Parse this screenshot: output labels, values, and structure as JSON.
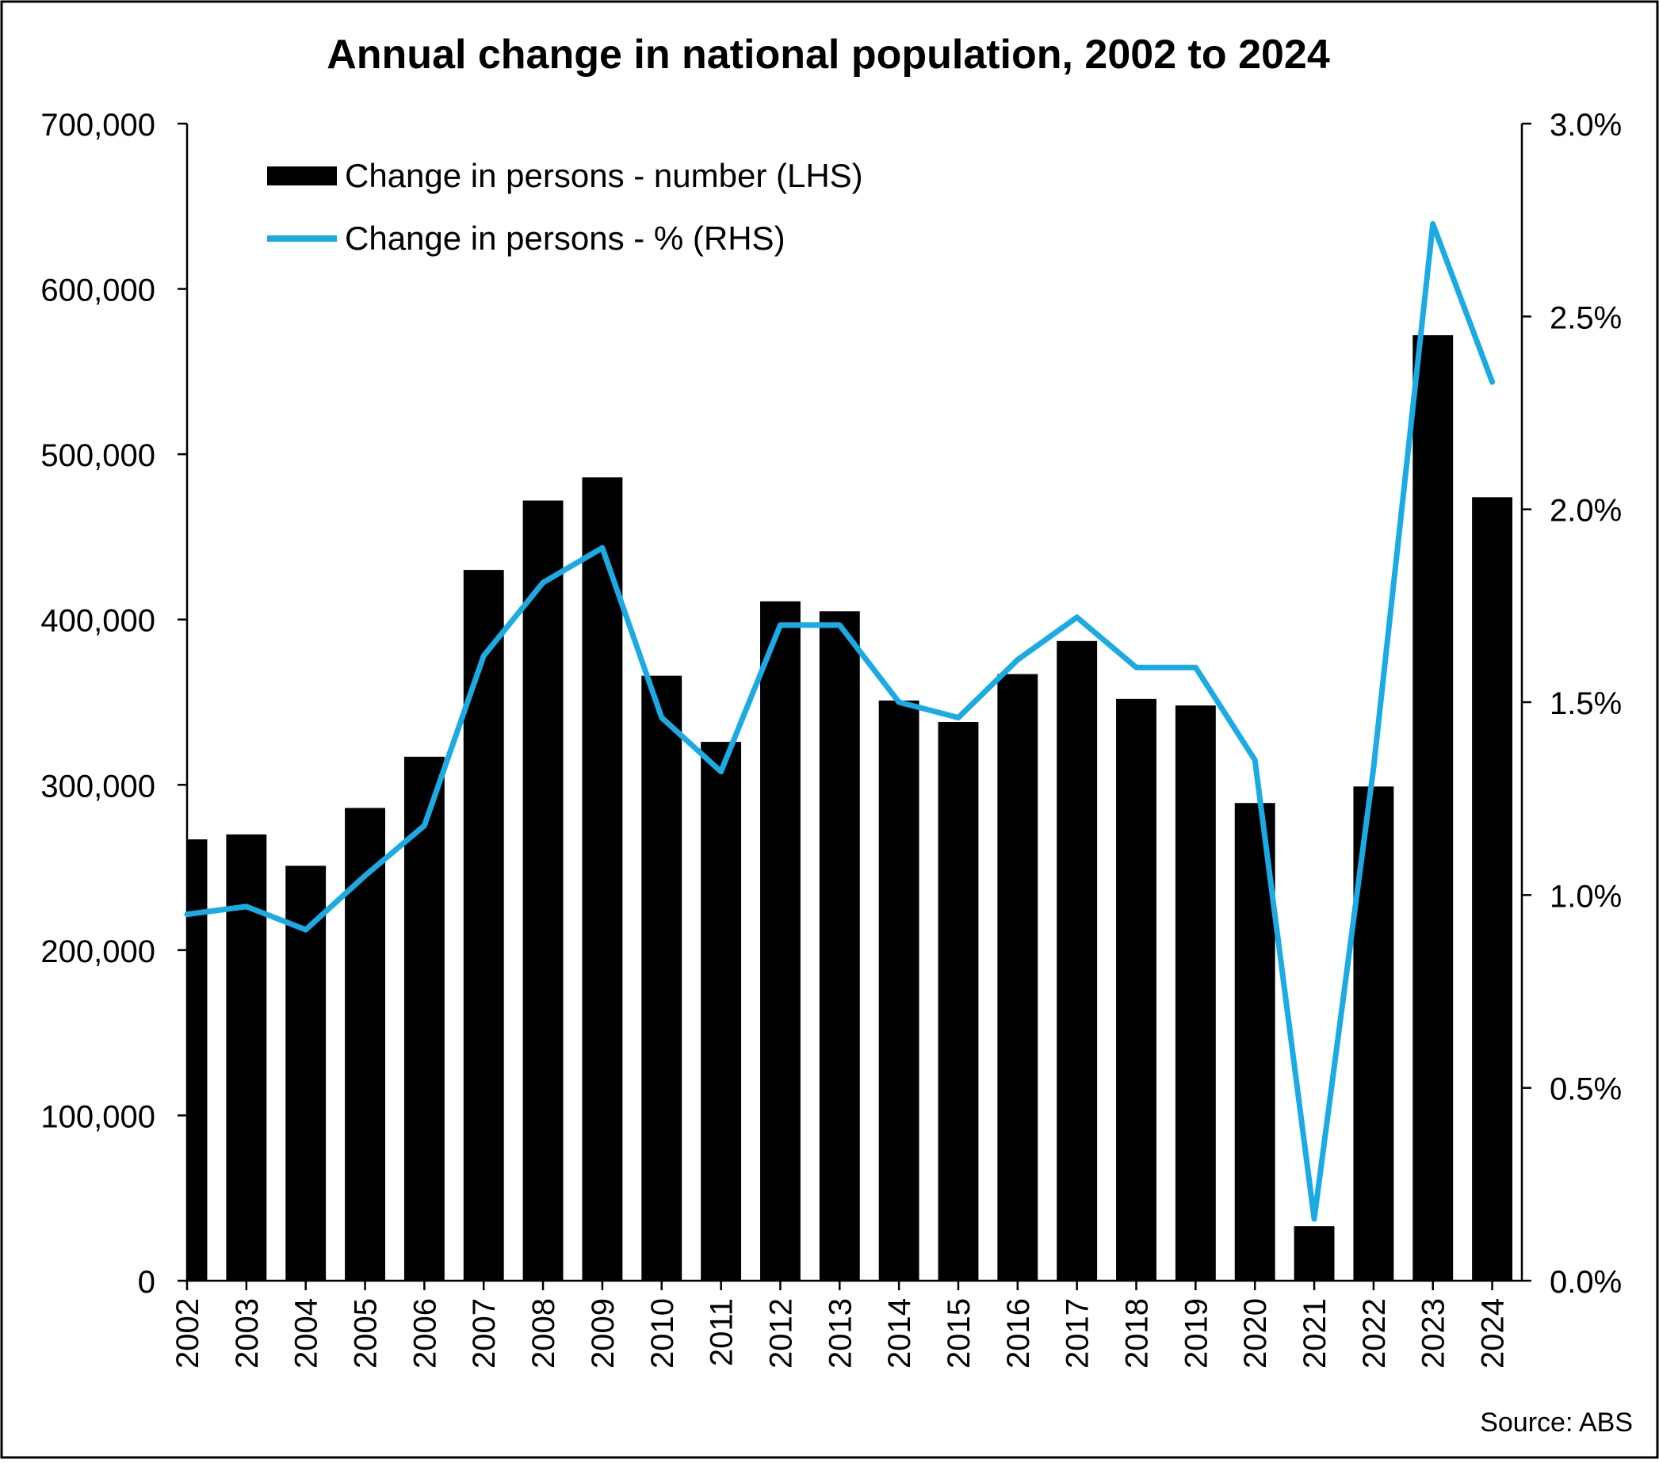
{
  "chart_data": {
    "type": "bar",
    "title": "Annual change in national population, 2002 to 2024",
    "source": "Source: ABS",
    "categories": [
      "2002",
      "2003",
      "2004",
      "2005",
      "2006",
      "2007",
      "2008",
      "2009",
      "2010",
      "2011",
      "2012",
      "2013",
      "2014",
      "2015",
      "2016",
      "2017",
      "2018",
      "2019",
      "2020",
      "2021",
      "2022",
      "2023",
      "2024"
    ],
    "series": [
      {
        "name": "Change in persons - number (LHS)",
        "type": "bar",
        "axis": "left",
        "color": "#000000",
        "values": [
          267000,
          270000,
          251000,
          286000,
          317000,
          430000,
          472000,
          486000,
          366000,
          326000,
          411000,
          405000,
          351000,
          338000,
          367000,
          387000,
          352000,
          348000,
          289000,
          33000,
          299000,
          572000,
          474000
        ]
      },
      {
        "name": "Change in persons - % (RHS)",
        "type": "line",
        "axis": "right",
        "color": "#1AABE4",
        "values": [
          0.95,
          0.97,
          0.91,
          1.05,
          1.18,
          1.62,
          1.81,
          1.9,
          1.46,
          1.32,
          1.7,
          1.7,
          1.5,
          1.46,
          1.61,
          1.72,
          1.59,
          1.59,
          1.35,
          0.16,
          1.33,
          2.74,
          2.33
        ]
      }
    ],
    "y_left": {
      "min": 0,
      "max": 700000,
      "ticks": [
        "0",
        "100,000",
        "200,000",
        "300,000",
        "400,000",
        "500,000",
        "600,000",
        "700,000"
      ]
    },
    "y_right": {
      "min": 0,
      "max": 3.0,
      "ticks": [
        "0.0%",
        "0.5%",
        "1.0%",
        "1.5%",
        "2.0%",
        "2.5%",
        "3.0%"
      ]
    },
    "grid": false,
    "legend_position": "top-left"
  }
}
